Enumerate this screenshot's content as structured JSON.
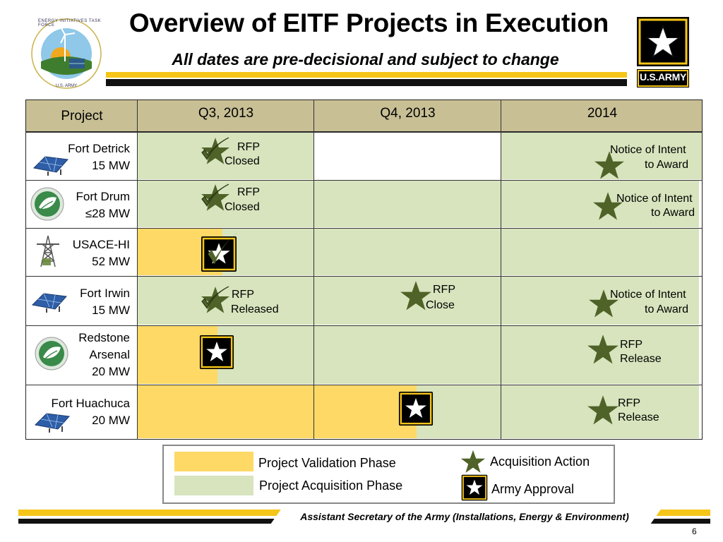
{
  "header": {
    "title": "Overview of EITF Projects in Execution",
    "subtitle": "All dates are pre-decisional and subject to change",
    "left_logo_text": "ENERGY INITIATIVES TASK FORCE",
    "left_logo_bottom": "U.S. ARMY",
    "army_logo_text": "U.S.ARMY"
  },
  "table": {
    "columns": [
      "Project",
      "Q3, 2013",
      "Q4, 2013",
      "2014"
    ],
    "rows": [
      {
        "name1": "Fort Detrick",
        "name2": "15 MW",
        "icon": "solar-panel-icon",
        "a_q3_1": "RFP",
        "a_q3_2": "Closed",
        "a_y_1": "Notice of Intent",
        "a_y_2": "to Award"
      },
      {
        "name1": "Fort Drum",
        "name2": "≤28 MW",
        "icon": "biomass-leaf-icon",
        "a_q3_1": "RFP",
        "a_q3_2": "Closed",
        "a_y_1": "Notice of Intent",
        "a_y_2": "to Award"
      },
      {
        "name1": "USACE-HI",
        "name2": "52 MW",
        "icon": "power-tower-icon"
      },
      {
        "name1": "Fort Irwin",
        "name2": "15 MW",
        "icon": "solar-panel-icon",
        "a_q3_1": "RFP",
        "a_q3_2": "Released",
        "a_q4_1": "RFP",
        "a_q4_2": "Close",
        "a_y_1": "Notice of Intent",
        "a_y_2": "to Award"
      },
      {
        "name1": "Redstone",
        "name2": "Arsenal",
        "name3": "20 MW",
        "icon": "biomass-leaf-icon",
        "a_y_1": "RFP",
        "a_y_2": "Release"
      },
      {
        "name1": "Fort Huachuca",
        "name2": "20 MW",
        "icon": "solar-panel-icon",
        "a_y_1": "RFP",
        "a_y_2": "Release"
      }
    ]
  },
  "legend": {
    "validation": "Project Validation Phase",
    "acquisition": "Project Acquisition Phase",
    "action": "Acquisition Action",
    "approval": "Army Approval"
  },
  "colors": {
    "validation": "#ffd966",
    "acquisition": "#d7e4bd",
    "star_green": "#4f6228",
    "header_bg": "#c8bf95",
    "army_gold": "#f5c518"
  },
  "footer": {
    "text": "Assistant Secretary of the Army (Installations, Energy & Environment)",
    "page": "6"
  }
}
